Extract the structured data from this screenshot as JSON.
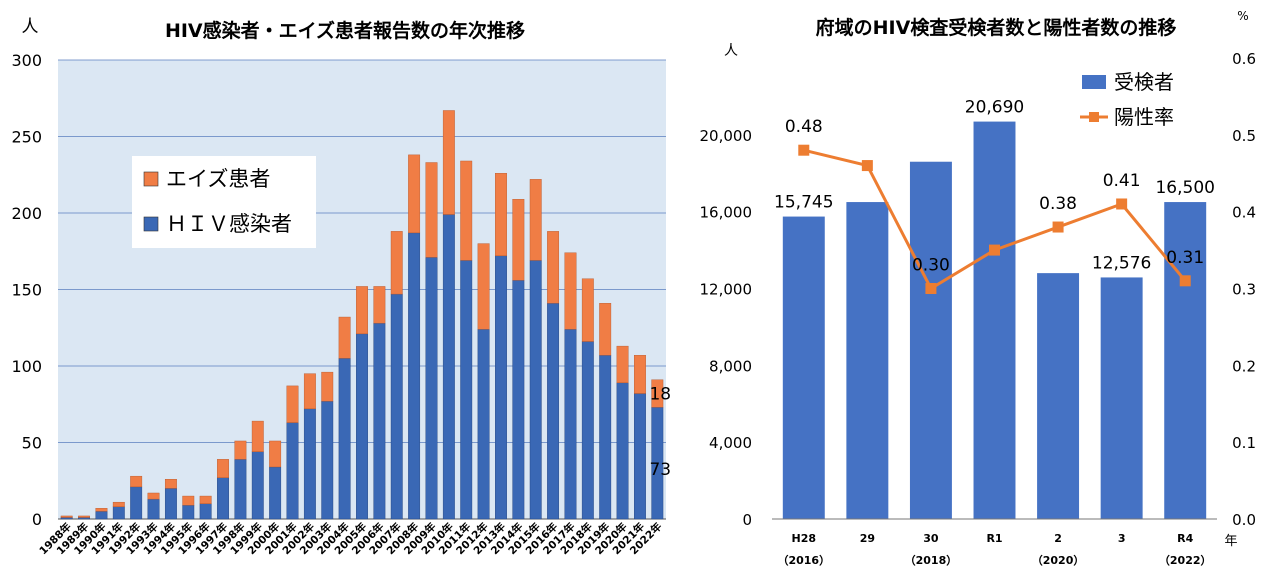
{
  "colors": {
    "plot_bg": "#dbe7f3",
    "hiv": "#3a68b5",
    "aids": "#f07d45",
    "grid": "#5b7fbf",
    "test_bar": "#4572c4",
    "rate_line": "#ed7d31"
  },
  "chart_data": [
    {
      "type": "bar",
      "stacked": true,
      "title": "HIV感染者・エイズ患者報告数の年次推移",
      "ylabel": "人",
      "xlabel": "",
      "ylim": [
        0,
        300
      ],
      "yticks": [
        "0",
        "50",
        "100",
        "150",
        "200",
        "250",
        "300"
      ],
      "grid": true,
      "legend_position": "top-left",
      "categories": [
        "1988年",
        "1989年",
        "1990年",
        "1991年",
        "1992年",
        "1993年",
        "1994年",
        "1995年",
        "1996年",
        "1997年",
        "1998年",
        "1999年",
        "2000年",
        "2001年",
        "2002年",
        "2003年",
        "2004年",
        "2005年",
        "2006年",
        "2007年",
        "2008年",
        "2009年",
        "2010年",
        "2011年",
        "2012年",
        "2013年",
        "2014年",
        "2015年",
        "2016年",
        "2017年",
        "2018年",
        "2019年",
        "2020年",
        "2021年",
        "2022年"
      ],
      "series": [
        {
          "name": "ＨＩＶ感染者",
          "values": [
            1,
            1,
            5,
            8,
            21,
            13,
            20,
            9,
            10,
            27,
            39,
            44,
            34,
            63,
            72,
            77,
            105,
            121,
            128,
            147,
            187,
            171,
            199,
            169,
            124,
            172,
            156,
            169,
            141,
            124,
            116,
            107,
            89,
            82,
            73
          ]
        },
        {
          "name": "エイズ患者",
          "values": [
            1,
            1,
            2,
            3,
            7,
            4,
            6,
            6,
            5,
            12,
            12,
            20,
            17,
            24,
            23,
            19,
            27,
            31,
            24,
            41,
            51,
            62,
            68,
            65,
            56,
            54,
            53,
            53,
            47,
            50,
            41,
            34,
            24,
            25,
            18
          ]
        }
      ],
      "data_labels": [
        {
          "category": "2022年",
          "series": "エイズ患者",
          "text": "18"
        },
        {
          "category": "2022年",
          "series": "ＨＩＶ感染者",
          "text": "73"
        }
      ]
    },
    {
      "type": "bar",
      "title": "府域のHIV検査受検者数と陽性者数の推移",
      "ylabel": "人",
      "y2label": "%",
      "xlabel": "年",
      "ylim": [
        0,
        24000
      ],
      "y2lim": [
        0,
        0.6
      ],
      "yticks": [
        "0",
        "4,000",
        "8,000",
        "12,000",
        "16,000",
        "20,000"
      ],
      "y2ticks": [
        "0.0",
        "0.1",
        "0.2",
        "0.3",
        "0.4",
        "0.5",
        "0.6"
      ],
      "grid": false,
      "legend_position": "top-right",
      "categories": [
        {
          "label": "H28",
          "sub": "（2016）"
        },
        {
          "label": "29",
          "sub": ""
        },
        {
          "label": "30",
          "sub": "（2018）"
        },
        {
          "label": "R1",
          "sub": ""
        },
        {
          "label": "2",
          "sub": "（2020）"
        },
        {
          "label": "3",
          "sub": ""
        },
        {
          "label": "R4",
          "sub": "（2022）"
        }
      ],
      "series": [
        {
          "name": "受検者",
          "kind": "bar",
          "axis": "left",
          "values": [
            15745,
            16500,
            18600,
            20690,
            12800,
            12576,
            16500
          ]
        },
        {
          "name": "陽性率",
          "kind": "line",
          "axis": "right",
          "values": [
            0.48,
            0.46,
            0.3,
            0.35,
            0.38,
            0.41,
            0.31
          ]
        }
      ],
      "bar_labels": [
        "15,745",
        "",
        "",
        "20,690",
        "",
        "12,576",
        "16,500"
      ],
      "line_labels": [
        "0.48",
        "",
        "0.30",
        "",
        "0.38",
        "0.41",
        "0.31"
      ]
    }
  ]
}
